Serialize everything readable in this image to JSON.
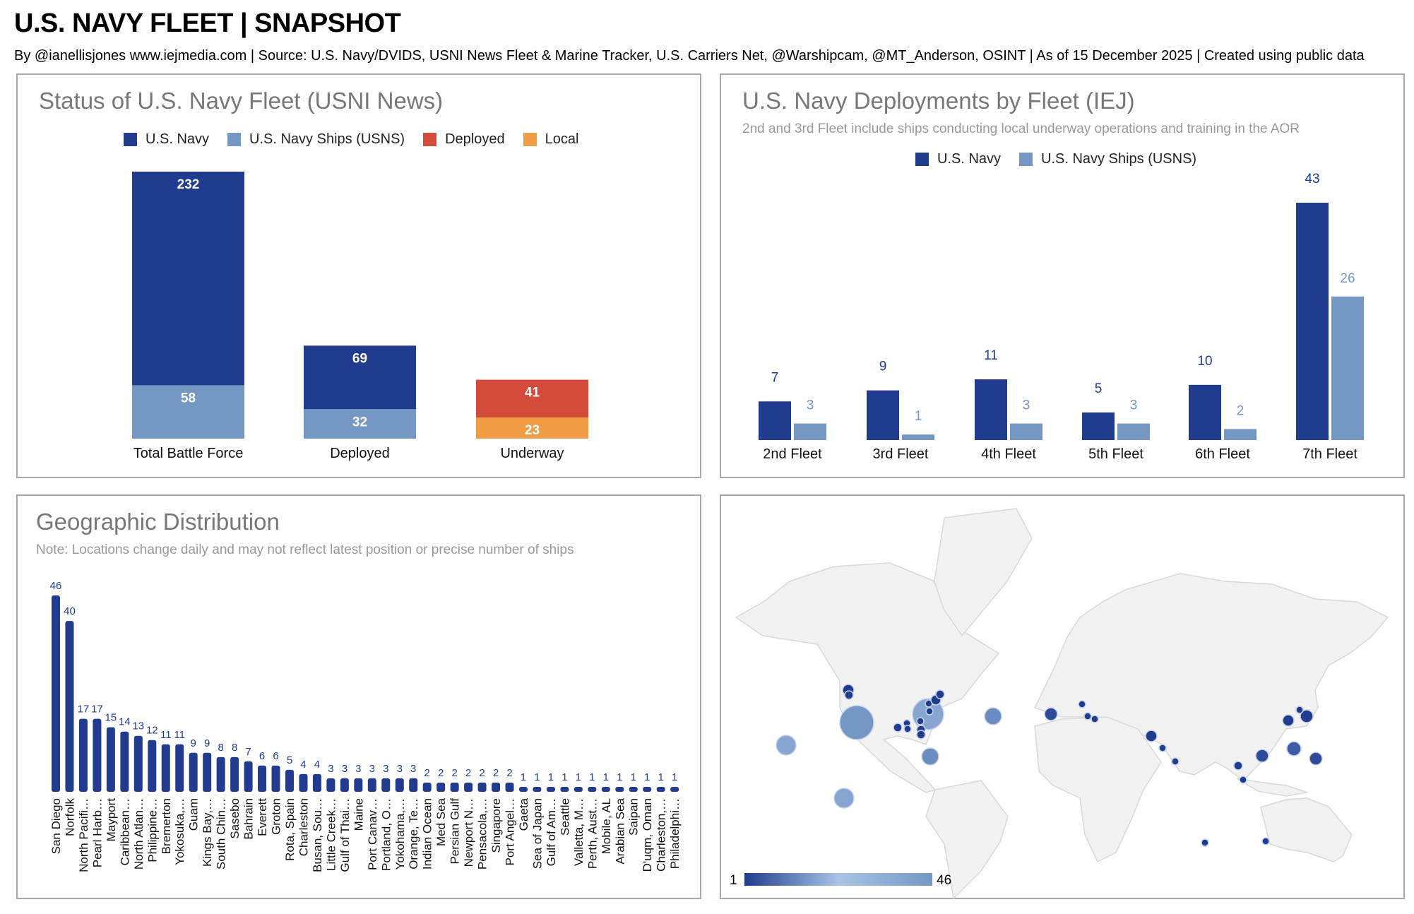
{
  "header": {
    "title": "U.S. NAVY FLEET | SNAPSHOT",
    "subtitle": "By @ianellisjones www.iejmedia.com | Source: U.S. Navy/DVIDS, USNI News Fleet & Marine Tracker, U.S. Carriers Net, @Warshipcam, @MT_Anderson, OSINT | As of 15 December 2025 | Created using public data"
  },
  "colors": {
    "navy": "#213c8e",
    "usns": "#7597c4",
    "deployed": "#d24b3b",
    "local": "#f09d46",
    "land": "#f2f2f2",
    "border": "#dcdcdc"
  },
  "chart_data": [
    {
      "type": "bar",
      "title": "Status of U.S. Navy Fleet (USNI News)",
      "stacked": true,
      "legend": [
        "U.S. Navy",
        "U.S. Navy Ships (USNS)",
        "Deployed",
        "Local"
      ],
      "categories": [
        "Total Battle Force",
        "Deployed",
        "Underway"
      ],
      "series": [
        {
          "name": "U.S. Navy",
          "values": [
            232,
            69,
            null
          ]
        },
        {
          "name": "U.S. Navy Ships (USNS)",
          "values": [
            58,
            32,
            null
          ]
        },
        {
          "name": "Deployed",
          "values": [
            null,
            null,
            41
          ]
        },
        {
          "name": "Local",
          "values": [
            null,
            null,
            23
          ]
        }
      ],
      "ylim": [
        0,
        290
      ]
    },
    {
      "type": "bar",
      "title": "U.S. Navy Deployments by Fleet (IEJ)",
      "subtitle": "2nd and 3rd Fleet include ships conducting local underway operations and training in the AOR",
      "legend": [
        "U.S. Navy",
        "U.S. Navy Ships (USNS)"
      ],
      "categories": [
        "2nd Fleet",
        "3rd Fleet",
        "4th Fleet",
        "5th Fleet",
        "6th Fleet",
        "7th Fleet"
      ],
      "series": [
        {
          "name": "U.S. Navy",
          "values": [
            7,
            9,
            11,
            5,
            10,
            43
          ]
        },
        {
          "name": "U.S. Navy Ships (USNS)",
          "values": [
            3,
            1,
            3,
            3,
            2,
            26
          ]
        }
      ],
      "ylim": [
        0,
        43
      ]
    },
    {
      "type": "bar",
      "title": "Geographic Distribution",
      "subtitle": "Note: Locations change daily and may not reflect latest position or precise number of ships",
      "categories": [
        "San Diego",
        "Norfolk",
        "North Pacifi…",
        "Pearl Harb…",
        "Mayport",
        "Caribbean…",
        "North Atlan…",
        "Philippine…",
        "Bremerton",
        "Yokosuka,…",
        "Guam",
        "Kings Bay,…",
        "South Chin…",
        "Sasebo",
        "Bahrain",
        "Everett",
        "Groton",
        "Rota, Spain",
        "Charleston",
        "Busan, Sou…",
        "Little Creek…",
        "Gulf of Thai…",
        "Maine",
        "Port Canav…",
        "Portland, O…",
        "Yokohama,…",
        "Orange, Te…",
        "Indian Ocean",
        "Med Sea",
        "Persian Gulf",
        "Newport N…",
        "Pensacola,…",
        "Singapore",
        "Port Angel…",
        "Gaeta",
        "Sea of Japan",
        "Gulf of Am…",
        "Seattle",
        "Valletta, M…",
        "Perth, Aust…",
        "Mobile, AL",
        "Arabian Sea",
        "Saipan",
        "D'uqm, Oman",
        "Charleston,…",
        "Philadelphi…"
      ],
      "values": [
        46,
        40,
        17,
        17,
        15,
        14,
        13,
        12,
        11,
        11,
        9,
        9,
        8,
        8,
        7,
        6,
        6,
        5,
        4,
        4,
        3,
        3,
        3,
        3,
        3,
        3,
        3,
        2,
        2,
        2,
        2,
        2,
        2,
        2,
        1,
        1,
        1,
        1,
        1,
        1,
        1,
        1,
        1,
        1,
        1,
        1
      ],
      "ylim": [
        0,
        46
      ]
    }
  ],
  "map": {
    "legend_min": "1",
    "legend_max": "46"
  }
}
